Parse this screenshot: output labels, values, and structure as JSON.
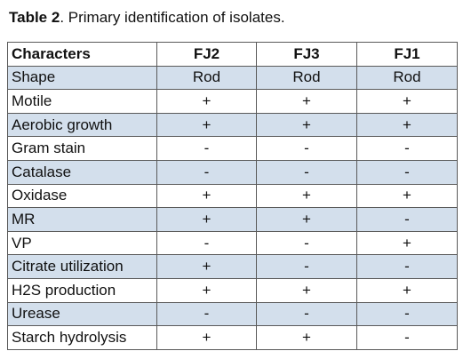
{
  "caption": {
    "label": "Table 2",
    "text": ". Primary identification of isolates."
  },
  "table": {
    "headers": [
      "Characters",
      "FJ2",
      "FJ3",
      "FJ1"
    ],
    "rows": [
      [
        "Shape",
        "Rod",
        "Rod",
        "Rod"
      ],
      [
        "Motile",
        "+",
        "+",
        "+"
      ],
      [
        "Aerobic growth",
        "+",
        "+",
        "+"
      ],
      [
        "Gram stain",
        "-",
        "-",
        "-"
      ],
      [
        "Catalase",
        "-",
        "-",
        "-"
      ],
      [
        "Oxidase",
        "+",
        "+",
        "+"
      ],
      [
        "MR",
        "+",
        "+",
        "-"
      ],
      [
        "VP",
        "-",
        "-",
        "+"
      ],
      [
        "Citrate utilization",
        "+",
        "-",
        "-"
      ],
      [
        "H2S production",
        "+",
        "+",
        "+"
      ],
      [
        "Urease",
        "-",
        "-",
        "-"
      ],
      [
        "Starch hydrolysis",
        "+",
        "+",
        "-"
      ]
    ],
    "band_color": "#d3dfec",
    "border_color": "#5a5a5a"
  }
}
